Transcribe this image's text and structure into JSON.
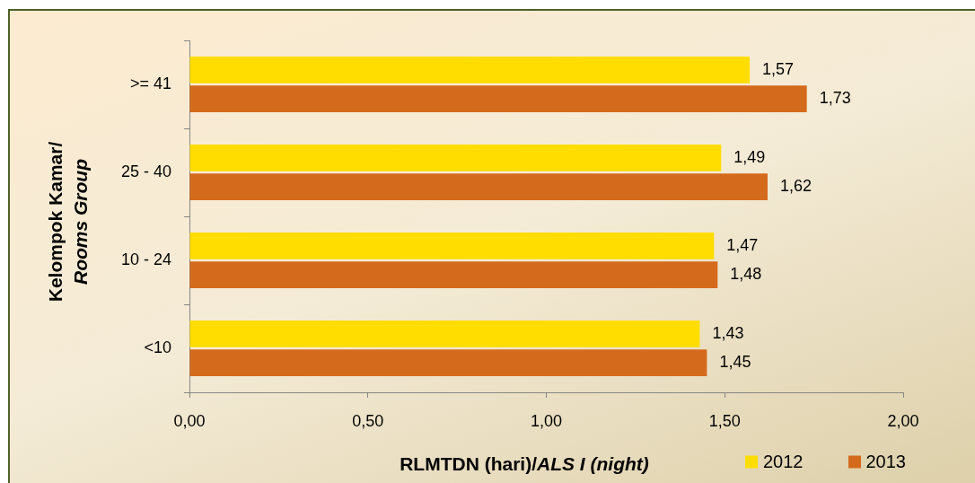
{
  "chart_data": {
    "type": "bar",
    "orientation": "horizontal",
    "xlabel": "RLMTDN (hari)/ALS I (night)",
    "ylabel": "Kelompok Kamar/ Rooms Group",
    "categories": [
      ">= 41",
      "25 - 40",
      "10 - 24",
      "<10"
    ],
    "series": [
      {
        "name": "2012",
        "color": "#ffdd00",
        "values": [
          1.57,
          1.49,
          1.47,
          1.43
        ],
        "value_labels": [
          "1,57",
          "1,49",
          "1,47",
          "1,43"
        ]
      },
      {
        "name": "2013",
        "color": "#d46a1c",
        "values": [
          1.73,
          1.62,
          1.48,
          1.45
        ],
        "value_labels": [
          "1,73",
          "1,62",
          "1,48",
          "1,45"
        ]
      }
    ],
    "xlim": [
      0,
      2
    ],
    "xticks": [
      {
        "value": 0,
        "label": "0,00"
      },
      {
        "value": 0.5,
        "label": "0,50"
      },
      {
        "value": 1,
        "label": "1,00"
      },
      {
        "value": 1.5,
        "label": "1,50"
      },
      {
        "value": 2,
        "label": "2,00"
      }
    ],
    "grid": false,
    "legend": "bottom right"
  }
}
